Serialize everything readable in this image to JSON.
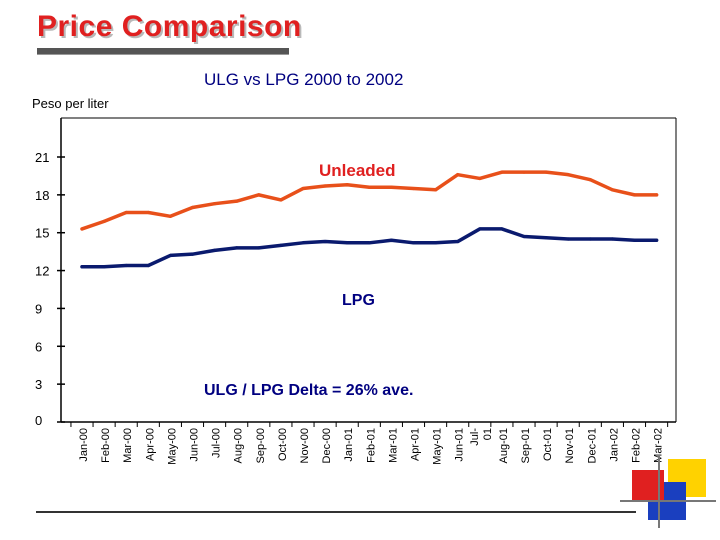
{
  "page": {
    "title": "Price Comparison",
    "subtitle": "ULG vs LPG 2000 to 2002",
    "y_unit": "Peso per liter"
  },
  "colors": {
    "title": "#e02020",
    "unleaded": "#e8501a",
    "lpg": "#0a1a6e",
    "axis": "#000000",
    "deco_yellow": "#ffd200",
    "deco_red": "#e02020",
    "deco_blue": "#1a3fbf"
  },
  "chart_data": {
    "type": "line",
    "title": "ULG vs LPG 2000 to 2002",
    "xlabel": "",
    "ylabel": "Peso per liter",
    "ylim": [
      0,
      24
    ],
    "yticks": [
      0,
      3,
      6,
      9,
      12,
      15,
      18,
      21
    ],
    "grid": false,
    "categories": [
      "Jan-00",
      "Feb-00",
      "Mar-00",
      "Apr-00",
      "May-00",
      "Jun-00",
      "Jul-00",
      "Aug-00",
      "Sep-00",
      "Oct-00",
      "Nov-00",
      "Dec-00",
      "Jan-01",
      "Feb-01",
      "Mar-01",
      "Apr-01",
      "May-01",
      "Jun-01",
      "Jul-01",
      "Aug-01",
      "Sep-01",
      "Oct-01",
      "Nov-01",
      "Dec-01",
      "Jan-02",
      "Feb-02",
      "Mar-02"
    ],
    "tick_labels": [
      "Jan-00",
      "Feb-00",
      "Mar-00",
      "Apr-00",
      "May-00",
      "Jun-00",
      "Jul-00",
      "Aug-00",
      "Sep-00",
      "Oct-00",
      "Nov-00",
      "Dec-00",
      "Jan-01",
      "Feb-01",
      "Mar-01",
      "Apr-01",
      "May-01",
      "Jun-01",
      "Jul-\n01",
      "Aug-01",
      "Sep-01",
      "Oct-01",
      "Nov-01",
      "Dec-01",
      "Jan-02",
      "Feb-02",
      "Mar-02"
    ],
    "series": [
      {
        "name": "Unleaded",
        "values": [
          15.3,
          15.9,
          16.6,
          16.6,
          16.3,
          17.0,
          17.3,
          17.5,
          18.0,
          17.6,
          18.5,
          18.7,
          18.8,
          18.6,
          18.6,
          18.5,
          18.4,
          19.6,
          19.3,
          19.8,
          19.8,
          19.8,
          19.6,
          19.2,
          18.4,
          18.0,
          18.0
        ]
      },
      {
        "name": "LPG",
        "values": [
          12.3,
          12.3,
          12.4,
          12.4,
          13.2,
          13.3,
          13.6,
          13.8,
          13.8,
          14.0,
          14.2,
          14.3,
          14.2,
          14.2,
          14.4,
          14.2,
          14.2,
          14.3,
          15.3,
          15.3,
          14.7,
          14.6,
          14.5,
          14.5,
          14.5,
          14.4,
          14.4
        ]
      }
    ],
    "annotations": {
      "unleaded_label": "Unleaded",
      "lpg_label": "LPG",
      "delta_note": "ULG / LPG Delta = 26% ave."
    }
  }
}
